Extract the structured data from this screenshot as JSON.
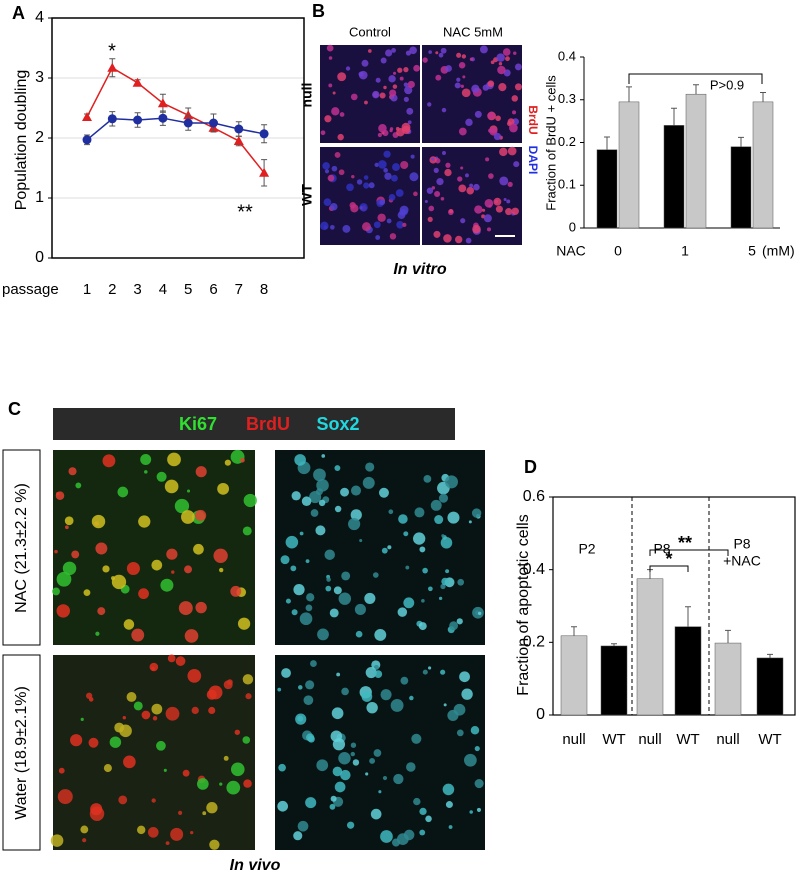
{
  "chart_data": [
    {
      "type": "line",
      "x_label": "passage",
      "y_label": "Population doubling",
      "categories": [
        "1",
        "2",
        "3",
        "4",
        "5",
        "6",
        "7",
        "8"
      ],
      "series": [
        {
          "color": "#e02020",
          "marker": "triangle",
          "values": [
            2.35,
            3.17,
            2.92,
            2.58,
            2.38,
            2.17,
            1.95,
            1.42
          ],
          "errors": [
            0.05,
            0.15,
            0.05,
            0.15,
            0.12,
            0.05,
            0.08,
            0.22
          ]
        },
        {
          "color": "#1f2f9f",
          "marker": "circle",
          "values": [
            1.97,
            2.32,
            2.3,
            2.33,
            2.25,
            2.25,
            2.15,
            2.07
          ],
          "errors": [
            0.08,
            0.12,
            0.12,
            0.12,
            0.12,
            0.15,
            0.12,
            0.15
          ]
        }
      ],
      "ylim": [
        0,
        4
      ],
      "yticks": [
        0,
        1,
        2,
        3,
        4
      ],
      "grid": true,
      "annotations": [
        "*",
        "**"
      ]
    },
    {
      "type": "grouped_bar",
      "y_label": "Fraction of BrdU + cells",
      "x_label": "NAC",
      "x_unit": "(mM)",
      "categories": [
        "0",
        "1",
        "5"
      ],
      "series": [
        {
          "color": "#000000",
          "values": [
            0.183,
            0.24,
            0.19
          ],
          "errors": [
            0.03,
            0.04,
            0.022
          ]
        },
        {
          "color": "#c8c8c8",
          "values": [
            0.295,
            0.313,
            0.295
          ],
          "errors": [
            0.035,
            0.022,
            0.022
          ]
        }
      ],
      "ylim": [
        0,
        0.4
      ],
      "yticks": [
        0,
        0.1,
        0.2,
        0.3,
        0.4
      ],
      "annotations": [
        "P>0.9"
      ]
    },
    {
      "type": "bar",
      "y_label": "Fraction of apoptotic cells",
      "categories": [
        "null",
        "WT",
        "null",
        "WT",
        "null",
        "WT"
      ],
      "values": [
        0.218,
        0.19,
        0.375,
        0.243,
        0.198,
        0.157
      ],
      "errors": [
        0.025,
        0.006,
        0.025,
        0.055,
        0.035,
        0.01
      ],
      "colors": [
        "#c8c8c8",
        "#000000",
        "#c8c8c8",
        "#000000",
        "#c8c8c8",
        "#000000"
      ],
      "ylim": [
        0,
        0.6
      ],
      "yticks": [
        0,
        0.2,
        0.4,
        0.6
      ],
      "group_labels": [
        [
          "P2"
        ],
        [
          "P8"
        ],
        [
          "P8",
          "+NAC"
        ]
      ],
      "annotations": [
        "*",
        "**"
      ]
    }
  ],
  "panels": {
    "A": "A",
    "B": "B",
    "C": "C",
    "D": "D"
  },
  "in_vitro": {
    "columns": [
      "Control",
      "NAC 5mM"
    ],
    "rows": [
      "null",
      "WT"
    ],
    "stain": [
      "BrdU",
      "DAPI"
    ],
    "caption": "In vitro"
  },
  "in_vivo": {
    "stains": [
      "Ki67",
      "BrdU",
      "Sox2"
    ],
    "rows": [
      "NAC (21.3±2.2 %)",
      "Water (18.9±2.1%)"
    ],
    "caption": "In vivo"
  }
}
